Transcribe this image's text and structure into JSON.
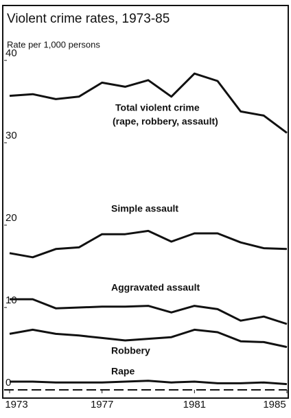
{
  "chart_data": {
    "type": "line",
    "title": "Violent crime rates, 1973-85",
    "y_axis_label": "Rate per 1,000 persons",
    "x": [
      1973,
      1974,
      1975,
      1976,
      1977,
      1978,
      1979,
      1980,
      1981,
      1982,
      1983,
      1984,
      1985
    ],
    "xlim": [
      1973,
      1985
    ],
    "xticks": [
      1973,
      1977,
      1981,
      1985
    ],
    "ylim": [
      0,
      40
    ],
    "yticks": [
      0,
      10,
      20,
      30,
      40
    ],
    "series": [
      {
        "name": "Total violent crime",
        "color": "#111111",
        "values": [
          35.7,
          35.9,
          35.3,
          35.6,
          37.3,
          36.8,
          37.6,
          35.6,
          38.4,
          37.5,
          33.8,
          33.3,
          31.2
        ]
      },
      {
        "name": "Simple assault",
        "color": "#111111",
        "values": [
          16.6,
          16.1,
          17.1,
          17.3,
          18.9,
          18.9,
          19.3,
          18.0,
          19.0,
          19.0,
          17.9,
          17.2,
          17.1
        ]
      },
      {
        "name": "Aggravated assault",
        "color": "#111111",
        "values": [
          11.0,
          11.0,
          9.9,
          10.0,
          10.1,
          10.1,
          10.2,
          9.4,
          10.2,
          9.8,
          8.4,
          8.9,
          8.0
        ]
      },
      {
        "name": "Robbery",
        "color": "#111111",
        "values": [
          6.8,
          7.3,
          6.8,
          6.6,
          6.3,
          6.0,
          6.2,
          6.4,
          7.3,
          7.0,
          5.9,
          5.8,
          5.2
        ]
      },
      {
        "name": "Rape",
        "color": "#111111",
        "values": [
          1.0,
          1.0,
          0.9,
          0.9,
          0.9,
          1.0,
          1.1,
          0.9,
          1.0,
          0.8,
          0.8,
          0.9,
          0.7
        ]
      }
    ],
    "annotations": [
      "(rape, robbery, assault)"
    ]
  }
}
